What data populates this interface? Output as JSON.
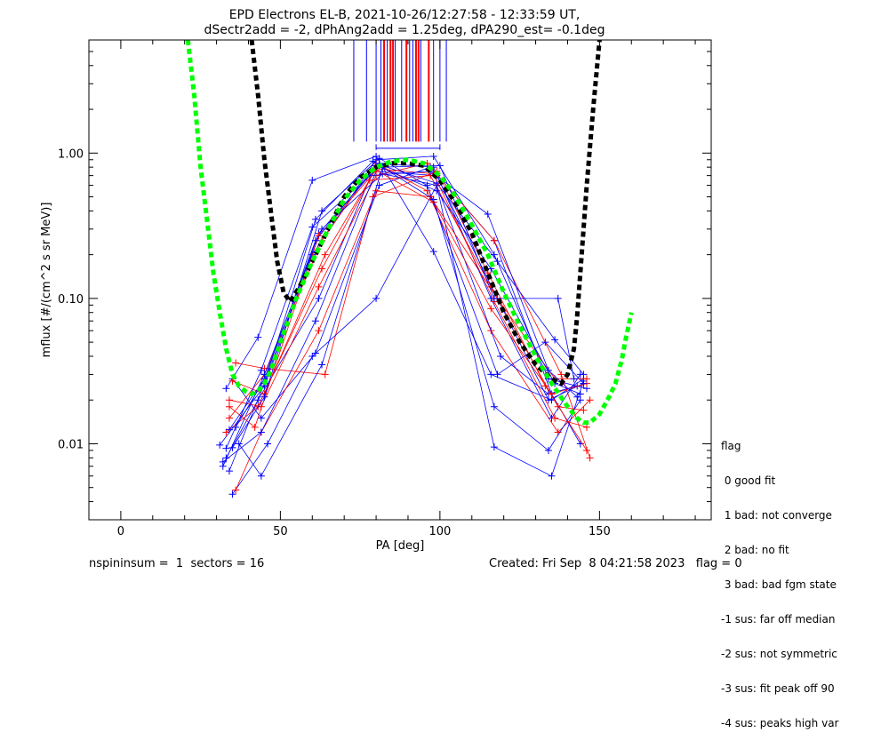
{
  "chart_data": {
    "type": "line",
    "title": "EPD Electrons EL-B, 2021-10-26/12:27:58 - 12:33:59 UT,",
    "subtitle": "dSectr2add = -2, dPhAng2add = 1.25deg, dPA290_est=  -0.1deg",
    "xlabel": "PA [deg]",
    "ylabel": "mflux [#/(cm^2 s sr MeV)]",
    "xlim": [
      -10,
      185
    ],
    "ylim": [
      0.003,
      6
    ],
    "yscale": "log",
    "x_ticks": [
      "0",
      "50",
      "100",
      "150"
    ],
    "y_ticks": [
      "0.01",
      "0.10",
      "1.00"
    ],
    "colors": {
      "blue": "#0000ff",
      "red": "#ff0000",
      "green": "#00ff00",
      "black": "#000000"
    },
    "vertical_lines": [
      {
        "x": 73,
        "color": "blue"
      },
      {
        "x": 77,
        "color": "blue"
      },
      {
        "x": 80,
        "color": "blue"
      },
      {
        "x": 81.5,
        "color": "blue"
      },
      {
        "x": 82.5,
        "color": "red"
      },
      {
        "x": 83.5,
        "color": "blue"
      },
      {
        "x": 84.5,
        "color": "red"
      },
      {
        "x": 85.3,
        "color": "red"
      },
      {
        "x": 86,
        "color": "blue"
      },
      {
        "x": 88,
        "color": "blue"
      },
      {
        "x": 89.5,
        "color": "red"
      },
      {
        "x": 90.5,
        "color": "blue"
      },
      {
        "x": 91.5,
        "color": "blue"
      },
      {
        "x": 92.5,
        "color": "red"
      },
      {
        "x": 93.3,
        "color": "red"
      },
      {
        "x": 94,
        "color": "blue"
      },
      {
        "x": 96.5,
        "color": "red"
      },
      {
        "x": 98,
        "color": "blue"
      },
      {
        "x": 100,
        "color": "blue"
      },
      {
        "x": 102,
        "color": "blue"
      }
    ],
    "series": [
      {
        "color": "blue",
        "x": [
          31,
          45,
          60,
          80,
          98,
          117,
          134,
          146
        ],
        "y": [
          0.0098,
          0.025,
          0.2,
          0.9,
          0.95,
          0.2,
          0.028,
          0.024
        ]
      },
      {
        "color": "blue",
        "x": [
          33,
          43,
          62,
          79,
          99,
          118,
          134,
          145
        ],
        "y": [
          0.008,
          0.02,
          0.1,
          0.75,
          0.7,
          0.1,
          0.02,
          0.026
        ]
      },
      {
        "color": "red",
        "x": [
          34,
          45,
          63,
          80,
          96,
          116,
          137,
          147
        ],
        "y": [
          0.015,
          0.03,
          0.25,
          0.85,
          0.55,
          0.06,
          0.012,
          0.02
        ]
      },
      {
        "color": "blue",
        "x": [
          35,
          44,
          61,
          81,
          97,
          117,
          135,
          144
        ],
        "y": [
          0.028,
          0.015,
          0.042,
          0.6,
          0.8,
          0.25,
          0.022,
          0.01
        ]
      },
      {
        "color": "red",
        "x": [
          36,
          45,
          64,
          79,
          99,
          115,
          133,
          146
        ],
        "y": [
          0.036,
          0.033,
          0.03,
          0.5,
          0.75,
          0.15,
          0.025,
          0.009
        ]
      },
      {
        "color": "blue",
        "x": [
          33,
          43,
          60,
          80,
          98,
          116,
          135,
          145
        ],
        "y": [
          0.024,
          0.054,
          0.65,
          0.95,
          0.21,
          0.03,
          0.02,
          0.028
        ]
      },
      {
        "color": "red",
        "x": [
          34,
          44,
          62,
          80,
          96,
          117,
          138,
          147
        ],
        "y": [
          0.02,
          0.018,
          0.12,
          0.7,
          0.85,
          0.25,
          0.03,
          0.008
        ]
      },
      {
        "color": "blue",
        "x": [
          32,
          45,
          63,
          82,
          99,
          119,
          134,
          143
        ],
        "y": [
          0.007,
          0.03,
          0.3,
          0.72,
          0.6,
          0.04,
          0.022,
          0.025
        ]
      },
      {
        "color": "blue",
        "x": [
          35,
          46,
          60,
          80,
          99,
          117,
          135,
          145
        ],
        "y": [
          0.0045,
          0.01,
          0.04,
          0.1,
          0.6,
          0.0095,
          0.006,
          0.027
        ]
      },
      {
        "color": "red",
        "x": [
          36,
          44,
          62,
          80,
          97,
          118,
          136,
          146
        ],
        "y": [
          0.0048,
          0.012,
          0.06,
          0.55,
          0.5,
          0.1,
          0.028,
          0.028
        ]
      },
      {
        "color": "blue",
        "x": [
          32,
          44,
          61,
          81,
          98,
          116,
          135,
          144
        ],
        "y": [
          0.0075,
          0.012,
          0.07,
          0.85,
          0.8,
          0.1,
          0.015,
          0.03
        ]
      },
      {
        "color": "blue",
        "x": [
          34,
          45,
          61,
          79,
          98,
          117,
          134,
          144
        ],
        "y": [
          0.0065,
          0.026,
          0.35,
          0.88,
          0.48,
          0.018,
          0.009,
          0.02
        ]
      },
      {
        "color": "red",
        "x": [
          33,
          43,
          63,
          78,
          97,
          116,
          137,
          145
        ],
        "y": [
          0.012,
          0.018,
          0.16,
          0.65,
          0.7,
          0.12,
          0.018,
          0.017
        ]
      },
      {
        "color": "blue",
        "x": [
          36,
          46,
          62,
          81,
          99,
          118,
          136,
          145
        ],
        "y": [
          0.013,
          0.03,
          0.28,
          0.83,
          0.62,
          0.18,
          0.052,
          0.03
        ]
      },
      {
        "color": "red",
        "x": [
          35,
          45,
          64,
          80,
          98,
          117,
          136,
          146
        ],
        "y": [
          0.027,
          0.022,
          0.2,
          0.78,
          0.72,
          0.095,
          0.015,
          0.013
        ]
      },
      {
        "color": "blue",
        "x": [
          33,
          44,
          60,
          78,
          97,
          115,
          134,
          143
        ],
        "y": [
          0.0093,
          0.032,
          0.31,
          0.7,
          0.75,
          0.38,
          0.032,
          0.021
        ]
      },
      {
        "color": "blue",
        "x": [
          37,
          44,
          63,
          82,
          100,
          117,
          137,
          142
        ],
        "y": [
          0.01,
          0.006,
          0.035,
          0.8,
          0.82,
          0.1,
          0.1,
          0.028
        ]
      },
      {
        "color": "red",
        "x": [
          34,
          42,
          62,
          80,
          98,
          116,
          135,
          146
        ],
        "y": [
          0.018,
          0.013,
          0.27,
          0.76,
          0.46,
          0.085,
          0.022,
          0.026
        ]
      },
      {
        "color": "blue",
        "x": [
          35,
          45,
          63,
          81,
          96,
          118,
          133,
          145
        ],
        "y": [
          0.0094,
          0.021,
          0.4,
          0.92,
          0.6,
          0.03,
          0.05,
          0.026
        ]
      },
      {
        "color": "blue",
        "x": [
          34,
          45,
          61,
          80,
          99,
          116,
          136,
          144
        ],
        "y": [
          0.0125,
          0.028,
          0.25,
          0.82,
          0.55,
          0.16,
          0.026,
          0.022
        ]
      }
    ],
    "fit_curves": [
      {
        "color": "black",
        "x": [
          41,
          43,
          45,
          47,
          49,
          51,
          53,
          56,
          60,
          65,
          70,
          75,
          80,
          85,
          90,
          95,
          100,
          105,
          110,
          115,
          120,
          125,
          130,
          135,
          138,
          140,
          142,
          143,
          144,
          146,
          148,
          150
        ],
        "y": [
          6.0,
          2.5,
          0.9,
          0.4,
          0.18,
          0.11,
          0.095,
          0.12,
          0.18,
          0.3,
          0.5,
          0.68,
          0.8,
          0.85,
          0.85,
          0.82,
          0.65,
          0.45,
          0.28,
          0.15,
          0.08,
          0.05,
          0.035,
          0.028,
          0.026,
          0.03,
          0.045,
          0.075,
          0.15,
          0.6,
          2.0,
          6.0
        ]
      },
      {
        "color": "green",
        "x": [
          21,
          23,
          25,
          27,
          29,
          31,
          33,
          35,
          37,
          39,
          41,
          43,
          45,
          47,
          50,
          55,
          60,
          65,
          70,
          75,
          80,
          85,
          90,
          95,
          100,
          105,
          110,
          115,
          120,
          125,
          130,
          135,
          140,
          143,
          145,
          147,
          150,
          153,
          155,
          157,
          158,
          160
        ],
        "y": [
          6.0,
          2.5,
          0.8,
          0.35,
          0.15,
          0.08,
          0.045,
          0.03,
          0.025,
          0.023,
          0.022,
          0.023,
          0.026,
          0.032,
          0.05,
          0.1,
          0.18,
          0.3,
          0.48,
          0.65,
          0.8,
          0.88,
          0.9,
          0.85,
          0.7,
          0.5,
          0.32,
          0.2,
          0.11,
          0.065,
          0.04,
          0.026,
          0.018,
          0.015,
          0.014,
          0.014,
          0.016,
          0.021,
          0.026,
          0.038,
          0.05,
          0.08
        ]
      }
    ]
  },
  "legend": {
    "title": "flag",
    "items": [
      " 0 good fit",
      " 1 bad: not converge",
      " 2 bad: no fit",
      " 3 bad: bad fgm state",
      "-1 sus: far off median",
      "-2 sus: not symmetric",
      "-3 sus: fit peak off 90",
      "-4 sus: peaks high var"
    ]
  },
  "footer": {
    "left": "nspininsum =  1  sectors = 16",
    "right": "Created: Fri Sep  8 04:21:58 2023   flag = 0"
  }
}
